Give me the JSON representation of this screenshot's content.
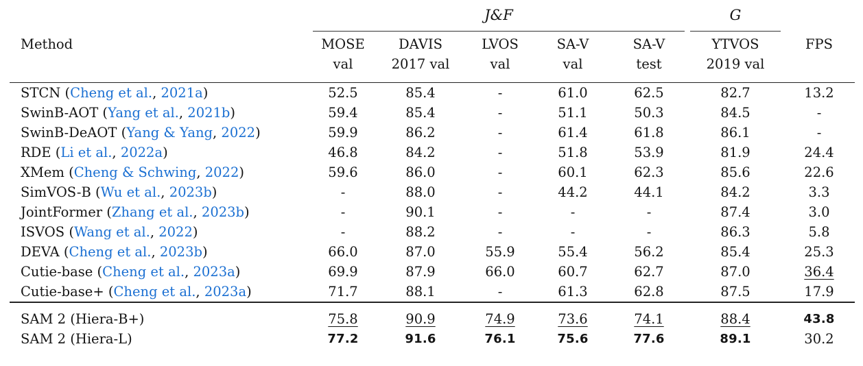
{
  "table": {
    "method_header": "Method",
    "group_headers": [
      {
        "label": "J&F",
        "spans": "MOSE val, DAVIS 2017 val, LVOS val, SA-V val, SA-V test"
      },
      {
        "label": "G",
        "spans": "YTVOS 2019 val"
      }
    ],
    "columns": [
      {
        "line1": "MOSE",
        "line2": "val"
      },
      {
        "line1": "DAVIS",
        "line2": "2017 val"
      },
      {
        "line1": "LVOS",
        "line2": "val"
      },
      {
        "line1": "SA-V",
        "line2": "val"
      },
      {
        "line1": "SA-V",
        "line2": "test"
      },
      {
        "line1": "YTVOS",
        "line2": "2019 val"
      },
      {
        "line1": "FPS",
        "line2": ""
      }
    ],
    "colors": {
      "citation_blue": "#1a6fd2",
      "text_black": "#141414",
      "rule": "#222222"
    },
    "groups": [
      {
        "name": "prior-work",
        "rows": [
          {
            "method": {
              "name": "STCN",
              "cite": {
                "authors": "Cheng et al.",
                "year": "2021a"
              }
            },
            "cells": [
              {
                "text": "52.5",
                "style": "normal"
              },
              {
                "text": "85.4",
                "style": "normal"
              },
              {
                "text": "-",
                "style": "normal"
              },
              {
                "text": "61.0",
                "style": "normal"
              },
              {
                "text": "62.5",
                "style": "normal"
              },
              {
                "text": "82.7",
                "style": "normal"
              },
              {
                "text": "13.2",
                "style": "normal"
              }
            ]
          },
          {
            "method": {
              "name": "SwinB-AOT",
              "cite": {
                "authors": "Yang et al.",
                "year": "2021b"
              }
            },
            "cells": [
              {
                "text": "59.4",
                "style": "normal"
              },
              {
                "text": "85.4",
                "style": "normal"
              },
              {
                "text": "-",
                "style": "normal"
              },
              {
                "text": "51.1",
                "style": "normal"
              },
              {
                "text": "50.3",
                "style": "normal"
              },
              {
                "text": "84.5",
                "style": "normal"
              },
              {
                "text": "-",
                "style": "normal"
              }
            ]
          },
          {
            "method": {
              "name": "SwinB-DeAOT",
              "cite": {
                "authors": "Yang & Yang",
                "year": "2022"
              }
            },
            "cells": [
              {
                "text": "59.9",
                "style": "normal"
              },
              {
                "text": "86.2",
                "style": "normal"
              },
              {
                "text": "-",
                "style": "normal"
              },
              {
                "text": "61.4",
                "style": "normal"
              },
              {
                "text": "61.8",
                "style": "normal"
              },
              {
                "text": "86.1",
                "style": "normal"
              },
              {
                "text": "-",
                "style": "normal"
              }
            ]
          },
          {
            "method": {
              "name": "RDE",
              "cite": {
                "authors": "Li et al.",
                "year": "2022a"
              }
            },
            "cells": [
              {
                "text": "46.8",
                "style": "normal"
              },
              {
                "text": "84.2",
                "style": "normal"
              },
              {
                "text": "-",
                "style": "normal"
              },
              {
                "text": "51.8",
                "style": "normal"
              },
              {
                "text": "53.9",
                "style": "normal"
              },
              {
                "text": "81.9",
                "style": "normal"
              },
              {
                "text": "24.4",
                "style": "normal"
              }
            ]
          },
          {
            "method": {
              "name": "XMem",
              "cite": {
                "authors": "Cheng & Schwing",
                "year": "2022"
              }
            },
            "cells": [
              {
                "text": "59.6",
                "style": "normal"
              },
              {
                "text": "86.0",
                "style": "normal"
              },
              {
                "text": "-",
                "style": "normal"
              },
              {
                "text": "60.1",
                "style": "normal"
              },
              {
                "text": "62.3",
                "style": "normal"
              },
              {
                "text": "85.6",
                "style": "normal"
              },
              {
                "text": "22.6",
                "style": "normal"
              }
            ]
          },
          {
            "method": {
              "name": "SimVOS-B",
              "cite": {
                "authors": "Wu et al.",
                "year": "2023b"
              }
            },
            "cells": [
              {
                "text": "-",
                "style": "normal"
              },
              {
                "text": "88.0",
                "style": "normal"
              },
              {
                "text": "-",
                "style": "normal"
              },
              {
                "text": "44.2",
                "style": "normal"
              },
              {
                "text": "44.1",
                "style": "normal"
              },
              {
                "text": "84.2",
                "style": "normal"
              },
              {
                "text": "3.3",
                "style": "normal"
              }
            ]
          },
          {
            "method": {
              "name": "JointFormer",
              "cite": {
                "authors": "Zhang et al.",
                "year": "2023b"
              }
            },
            "cells": [
              {
                "text": "-",
                "style": "normal"
              },
              {
                "text": "90.1",
                "style": "normal"
              },
              {
                "text": "-",
                "style": "normal"
              },
              {
                "text": "-",
                "style": "normal"
              },
              {
                "text": "-",
                "style": "normal"
              },
              {
                "text": "87.4",
                "style": "normal"
              },
              {
                "text": "3.0",
                "style": "normal"
              }
            ]
          },
          {
            "method": {
              "name": "ISVOS",
              "cite": {
                "authors": "Wang et al.",
                "year": "2022"
              }
            },
            "cells": [
              {
                "text": "-",
                "style": "normal"
              },
              {
                "text": "88.2",
                "style": "normal"
              },
              {
                "text": "-",
                "style": "normal"
              },
              {
                "text": "-",
                "style": "normal"
              },
              {
                "text": "-",
                "style": "normal"
              },
              {
                "text": "86.3",
                "style": "normal"
              },
              {
                "text": "5.8",
                "style": "normal"
              }
            ]
          },
          {
            "method": {
              "name": "DEVA",
              "cite": {
                "authors": "Cheng et al.",
                "year": "2023b"
              }
            },
            "cells": [
              {
                "text": "66.0",
                "style": "normal"
              },
              {
                "text": "87.0",
                "style": "normal"
              },
              {
                "text": "55.9",
                "style": "normal"
              },
              {
                "text": "55.4",
                "style": "normal"
              },
              {
                "text": "56.2",
                "style": "normal"
              },
              {
                "text": "85.4",
                "style": "normal"
              },
              {
                "text": "25.3",
                "style": "normal"
              }
            ]
          },
          {
            "method": {
              "name": "Cutie-base",
              "cite": {
                "authors": "Cheng et al.",
                "year": "2023a"
              }
            },
            "cells": [
              {
                "text": "69.9",
                "style": "normal"
              },
              {
                "text": "87.9",
                "style": "normal"
              },
              {
                "text": "66.0",
                "style": "normal"
              },
              {
                "text": "60.7",
                "style": "normal"
              },
              {
                "text": "62.7",
                "style": "normal"
              },
              {
                "text": "87.0",
                "style": "normal"
              },
              {
                "text": "36.4",
                "style": "underline"
              }
            ]
          },
          {
            "method": {
              "name": "Cutie-base+",
              "cite": {
                "authors": "Cheng et al.",
                "year": "2023a"
              }
            },
            "cells": [
              {
                "text": "71.7",
                "style": "normal"
              },
              {
                "text": "88.1",
                "style": "normal"
              },
              {
                "text": "-",
                "style": "normal"
              },
              {
                "text": "61.3",
                "style": "normal"
              },
              {
                "text": "62.8",
                "style": "normal"
              },
              {
                "text": "87.5",
                "style": "normal"
              },
              {
                "text": "17.9",
                "style": "normal"
              }
            ]
          }
        ]
      },
      {
        "name": "sam2",
        "rows": [
          {
            "method": {
              "name": "SAM 2 (Hiera-B+)",
              "cite": null
            },
            "cells": [
              {
                "text": "75.8",
                "style": "underline"
              },
              {
                "text": "90.9",
                "style": "underline"
              },
              {
                "text": "74.9",
                "style": "underline"
              },
              {
                "text": "73.6",
                "style": "underline"
              },
              {
                "text": "74.1",
                "style": "underline"
              },
              {
                "text": "88.4",
                "style": "underline"
              },
              {
                "text": "43.8",
                "style": "bold"
              }
            ]
          },
          {
            "method": {
              "name": "SAM 2 (Hiera-L)",
              "cite": null
            },
            "cells": [
              {
                "text": "77.2",
                "style": "bold"
              },
              {
                "text": "91.6",
                "style": "bold"
              },
              {
                "text": "76.1",
                "style": "bold"
              },
              {
                "text": "75.6",
                "style": "bold"
              },
              {
                "text": "77.6",
                "style": "bold"
              },
              {
                "text": "89.1",
                "style": "bold"
              },
              {
                "text": "30.2",
                "style": "normal"
              }
            ]
          }
        ]
      }
    ]
  }
}
